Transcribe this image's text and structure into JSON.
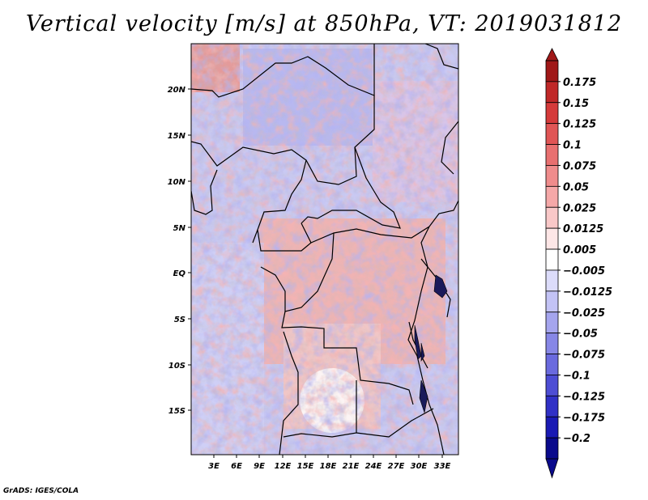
{
  "title": "Vertical velocity [m/s] at 850hPa, VT: 2019031812",
  "footer": "GrADS: IGES/COLA",
  "map": {
    "lon_range": [
      0,
      35
    ],
    "lat_range": [
      -20,
      25
    ],
    "lat_ticks": [
      {
        "label": "20N",
        "value": 20
      },
      {
        "label": "15N",
        "value": 15
      },
      {
        "label": "10N",
        "value": 10
      },
      {
        "label": "5N",
        "value": 5
      },
      {
        "label": "EQ",
        "value": 0
      },
      {
        "label": "5S",
        "value": -5
      },
      {
        "label": "10S",
        "value": -10
      },
      {
        "label": "15S",
        "value": -15
      }
    ],
    "lon_ticks": [
      {
        "label": "3E",
        "value": 3
      },
      {
        "label": "6E",
        "value": 6
      },
      {
        "label": "9E",
        "value": 9
      },
      {
        "label": "12E",
        "value": 12
      },
      {
        "label": "15E",
        "value": 15
      },
      {
        "label": "18E",
        "value": 18
      },
      {
        "label": "21E",
        "value": 21
      },
      {
        "label": "24E",
        "value": 24
      },
      {
        "label": "27E",
        "value": 27
      },
      {
        "label": "30E",
        "value": 30
      },
      {
        "label": "33E",
        "value": 33
      }
    ]
  },
  "colorbar": {
    "levels": [
      "0.175",
      "0.15",
      "0.125",
      "0.1",
      "0.075",
      "0.05",
      "0.025",
      "0.0125",
      "0.005",
      "-0.005",
      "-0.0125",
      "-0.025",
      "-0.05",
      "-0.075",
      "-0.1",
      "-0.125",
      "-0.175",
      "-0.2"
    ],
    "colors": [
      "#a01818",
      "#c02828",
      "#d53a3a",
      "#e05555",
      "#e87070",
      "#ef8c8c",
      "#f5a8a8",
      "#f9c8c8",
      "#fde6e6",
      "#ffffff",
      "#dcdcfa",
      "#c3c3f5",
      "#a5a5ee",
      "#8787e6",
      "#6a6ade",
      "#4d4dd4",
      "#3030c6",
      "#1a1ab4",
      "#0a0a8c"
    ]
  }
}
